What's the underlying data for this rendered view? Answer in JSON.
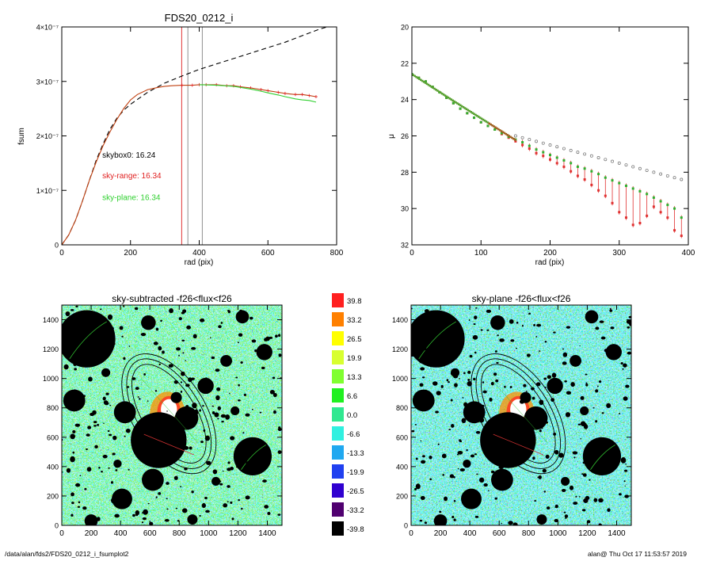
{
  "footer": {
    "path": "/data/alan/fds2/FDS20_0212_i_fsumplot2",
    "stamp": "alan@  Thu Oct 17 11:53:57 2019"
  },
  "chart_data": [
    {
      "type": "line",
      "title": "FDS20_0212_i",
      "xlabel": "rad (pix)",
      "ylabel": "fsum",
      "xlim": [
        0,
        800
      ],
      "ylim": [
        0,
        4e-07
      ],
      "xticks": [
        {
          "v": 0,
          "label": "0"
        },
        {
          "v": 200,
          "label": "200"
        },
        {
          "v": 400,
          "label": "400"
        },
        {
          "v": 600,
          "label": "600"
        },
        {
          "v": 800,
          "label": "800"
        }
      ],
      "yticks": [
        {
          "v": 0,
          "label": "0"
        },
        {
          "v": 1e-07,
          "label": "1×10⁻⁷"
        },
        {
          "v": 2e-07,
          "label": "2×10⁻⁷"
        },
        {
          "v": 3e-07,
          "label": "3×10⁻⁷"
        },
        {
          "v": 4e-07,
          "label": "4×10⁻⁷"
        }
      ],
      "vlines": [
        {
          "x": 349,
          "color": "#e03030"
        },
        {
          "x": 367,
          "color": "#909090"
        },
        {
          "x": 409,
          "color": "#909090"
        }
      ],
      "series": [
        {
          "style": "dashed",
          "color": "#000000",
          "x": [
            0,
            20,
            40,
            60,
            80,
            100,
            120,
            140,
            160,
            180,
            200,
            250,
            300,
            350,
            400,
            450,
            500,
            550,
            600,
            650,
            700,
            750,
            800
          ],
          "y": [
            0,
            1.8e-08,
            4.5e-08,
            8e-08,
            1.18e-07,
            1.55e-07,
            1.85e-07,
            2.12e-07,
            2.32e-07,
            2.47e-07,
            2.58e-07,
            2.8e-07,
            2.97e-07,
            3.1e-07,
            3.22e-07,
            3.32e-07,
            3.42e-07,
            3.52e-07,
            3.62e-07,
            3.72e-07,
            3.84e-07,
            3.96e-07,
            4.05e-07
          ]
        },
        {
          "style": "solid",
          "color": "#c04010",
          "x": [
            0,
            20,
            40,
            60,
            80,
            100,
            120,
            140,
            160,
            180,
            200,
            220,
            250,
            280,
            300,
            320,
            350,
            380,
            400,
            420,
            450,
            480,
            500,
            520,
            550,
            580,
            600,
            630,
            650,
            680,
            700,
            720,
            740
          ],
          "y": [
            0,
            1.8e-08,
            4.5e-08,
            8e-08,
            1.18e-07,
            1.52e-07,
            1.82e-07,
            2.07e-07,
            2.3e-07,
            2.5e-07,
            2.66e-07,
            2.76e-07,
            2.85e-07,
            2.89e-07,
            2.91e-07,
            2.92e-07,
            2.93e-07,
            2.93e-07,
            2.94e-07,
            2.94e-07,
            2.94e-07,
            2.92e-07,
            2.92e-07,
            2.9e-07,
            2.88e-07,
            2.85e-07,
            2.83e-07,
            2.8e-07,
            2.78e-07,
            2.76e-07,
            2.76e-07,
            2.74e-07,
            2.72e-07
          ]
        },
        {
          "style": "solid",
          "color": "#30d030",
          "x": [
            400,
            450,
            500,
            520,
            550,
            580,
            600,
            630,
            650,
            680,
            700,
            720,
            740
          ],
          "y": [
            2.94e-07,
            2.93e-07,
            2.91e-07,
            2.89e-07,
            2.86e-07,
            2.82e-07,
            2.79e-07,
            2.75e-07,
            2.72e-07,
            2.68e-07,
            2.66e-07,
            2.65e-07,
            2.62e-07
          ]
        }
      ],
      "annotations": [
        {
          "text": "skybox0: 16.24",
          "color": "#000000",
          "x": 210,
          "y": 1.6e-07
        },
        {
          "text": "sky-range: 16.34",
          "color": "#e02020",
          "x": 210,
          "y": 1.22e-07
        },
        {
          "text": "sky-plane: 16.34",
          "color": "#30d030",
          "x": 210,
          "y": 8.2e-08
        }
      ]
    },
    {
      "type": "scatter",
      "title": "",
      "xlabel": "rad (pix)",
      "ylabel": "μ",
      "xlim": [
        0,
        400
      ],
      "ylim": [
        32,
        20
      ],
      "xticks": [
        {
          "v": 0,
          "label": "0"
        },
        {
          "v": 100,
          "label": "100"
        },
        {
          "v": 200,
          "label": "200"
        },
        {
          "v": 300,
          "label": "300"
        },
        {
          "v": 400,
          "label": "400"
        }
      ],
      "yticks": [
        {
          "v": 20,
          "label": "20"
        },
        {
          "v": 22,
          "label": "22"
        },
        {
          "v": 24,
          "label": "24"
        },
        {
          "v": 26,
          "label": "26"
        },
        {
          "v": 28,
          "label": "28"
        },
        {
          "v": 30,
          "label": "30"
        },
        {
          "v": 32,
          "label": "32"
        }
      ],
      "series": [
        {
          "color": "#30b030",
          "x": [
            0,
            10,
            20,
            30,
            40,
            50,
            60,
            70,
            80,
            90,
            100,
            110,
            120,
            130,
            140,
            150,
            160,
            170,
            180,
            190,
            200,
            210,
            220,
            230,
            240,
            250,
            260,
            270,
            280,
            290,
            300,
            310,
            320,
            330,
            340,
            350,
            360,
            370,
            380,
            390
          ],
          "y": [
            22.6,
            22.8,
            23.0,
            23.3,
            23.6,
            23.9,
            24.2,
            24.5,
            24.75,
            25.0,
            25.25,
            25.45,
            25.65,
            25.85,
            26.05,
            26.2,
            26.35,
            26.55,
            26.75,
            26.9,
            27.05,
            27.2,
            27.35,
            27.5,
            27.7,
            27.8,
            27.95,
            28.1,
            28.3,
            28.45,
            28.6,
            28.75,
            28.9,
            29.05,
            29.2,
            29.4,
            29.6,
            29.8,
            30.0,
            30.5
          ]
        },
        {
          "color": "#e03030",
          "x": [
            0,
            10,
            20,
            30,
            40,
            50,
            60,
            70,
            80,
            90,
            100,
            110,
            120,
            130,
            140,
            150,
            160,
            170,
            180,
            190,
            200,
            210,
            220,
            230,
            240,
            250,
            260,
            270,
            280,
            290,
            300,
            310,
            320,
            330,
            340,
            350,
            360,
            370,
            380,
            390
          ],
          "y": [
            22.6,
            22.8,
            23.0,
            23.3,
            23.6,
            23.9,
            24.2,
            24.5,
            24.75,
            25.0,
            25.25,
            25.45,
            25.65,
            25.9,
            26.1,
            26.3,
            26.5,
            26.7,
            26.95,
            27.1,
            27.3,
            27.5,
            27.7,
            27.95,
            28.2,
            28.4,
            28.7,
            29.0,
            29.3,
            29.7,
            30.2,
            30.5,
            30.9,
            30.8,
            30.4,
            29.9,
            30.2,
            30.5,
            31.2,
            31.5
          ]
        },
        {
          "color": "#707070",
          "x": [
            150,
            160,
            170,
            180,
            190,
            200,
            210,
            220,
            230,
            240,
            250,
            260,
            270,
            280,
            290,
            300,
            310,
            320,
            330,
            340,
            350,
            360,
            370,
            380,
            390
          ],
          "y": [
            26.0,
            26.1,
            26.2,
            26.3,
            26.4,
            26.5,
            26.6,
            26.7,
            26.8,
            26.9,
            27.0,
            27.1,
            27.2,
            27.3,
            27.4,
            27.5,
            27.6,
            27.7,
            27.8,
            27.9,
            28.0,
            28.1,
            28.2,
            28.3,
            28.4
          ]
        }
      ]
    },
    {
      "type": "heatmap",
      "title": "sky-subtracted -f26<flux<f26",
      "xlim": [
        0,
        1500
      ],
      "ylim": [
        0,
        1500
      ],
      "xticks": [
        {
          "v": 0,
          "label": "0"
        },
        {
          "v": 200,
          "label": "200"
        },
        {
          "v": 400,
          "label": "400"
        },
        {
          "v": 600,
          "label": "600"
        },
        {
          "v": 800,
          "label": "800"
        },
        {
          "v": 1000,
          "label": "1000"
        },
        {
          "v": 1200,
          "label": "1200"
        },
        {
          "v": 1400,
          "label": "1400"
        }
      ],
      "yticks": [
        {
          "v": 0,
          "label": "0"
        },
        {
          "v": 200,
          "label": "200"
        },
        {
          "v": 400,
          "label": "400"
        },
        {
          "v": 600,
          "label": "600"
        },
        {
          "v": 800,
          "label": "800"
        },
        {
          "v": 1000,
          "label": "1000"
        },
        {
          "v": 1200,
          "label": "1200"
        },
        {
          "v": 1400,
          "label": "1400"
        }
      ]
    },
    {
      "type": "heatmap",
      "title": "sky-plane -f26<flux<f26",
      "xlim": [
        0,
        1500
      ],
      "ylim": [
        0,
        1500
      ],
      "xticks": [
        {
          "v": 0,
          "label": "0"
        },
        {
          "v": 200,
          "label": "200"
        },
        {
          "v": 400,
          "label": "400"
        },
        {
          "v": 600,
          "label": "600"
        },
        {
          "v": 800,
          "label": "800"
        },
        {
          "v": 1000,
          "label": "1000"
        },
        {
          "v": 1200,
          "label": "1200"
        },
        {
          "v": 1400,
          "label": "1400"
        }
      ],
      "yticks": [
        {
          "v": 0,
          "label": "0"
        },
        {
          "v": 200,
          "label": "200"
        },
        {
          "v": 400,
          "label": "400"
        },
        {
          "v": 600,
          "label": "600"
        },
        {
          "v": 800,
          "label": "800"
        },
        {
          "v": 1000,
          "label": "1000"
        },
        {
          "v": 1200,
          "label": "1200"
        },
        {
          "v": 1400,
          "label": "1400"
        }
      ]
    }
  ],
  "colorbar": [
    {
      "label": "39.8",
      "color": "#ff2020"
    },
    {
      "label": "33.2",
      "color": "#ff8000"
    },
    {
      "label": "26.5",
      "color": "#ffff00"
    },
    {
      "label": "19.9",
      "color": "#d8ff30"
    },
    {
      "label": "13.3",
      "color": "#80ff30"
    },
    {
      "label": "6.6",
      "color": "#20f020"
    },
    {
      "label": "0.0",
      "color": "#30e890"
    },
    {
      "label": "-6.6",
      "color": "#30f0e0"
    },
    {
      "label": "-13.3",
      "color": "#20a8f0"
    },
    {
      "label": "-19.9",
      "color": "#2040f0"
    },
    {
      "label": "-26.5",
      "color": "#3000d0"
    },
    {
      "label": "-33.2",
      "color": "#500070"
    },
    {
      "label": "-39.8",
      "color": "#000000"
    }
  ],
  "mask_blobs": [
    {
      "x": 170,
      "y": 1270,
      "r": 195,
      "stroke": "#30c030"
    },
    {
      "x": 85,
      "y": 850,
      "r": 75
    },
    {
      "x": 1300,
      "y": 470,
      "r": 130,
      "stroke": "#30c030"
    },
    {
      "x": 660,
      "y": 580,
      "r": 190
    },
    {
      "x": 430,
      "y": 770,
      "r": 75
    },
    {
      "x": 980,
      "y": 950,
      "r": 55
    },
    {
      "x": 1380,
      "y": 1180,
      "r": 55
    },
    {
      "x": 620,
      "y": 310,
      "r": 75
    },
    {
      "x": 410,
      "y": 180,
      "r": 70
    },
    {
      "x": 850,
      "y": 730,
      "r": 80
    },
    {
      "x": 590,
      "y": 1380,
      "r": 50
    },
    {
      "x": 1120,
      "y": 1120,
      "r": 40
    },
    {
      "x": 1230,
      "y": 1420,
      "r": 45
    },
    {
      "x": 780,
      "y": 870,
      "r": 38
    },
    {
      "x": 300,
      "y": 1040,
      "r": 30
    },
    {
      "x": 1180,
      "y": 780,
      "r": 30
    },
    {
      "x": 200,
      "y": 30,
      "r": 45
    },
    {
      "x": 890,
      "y": 40,
      "r": 35
    },
    {
      "x": 380,
      "y": 420,
      "r": 28
    },
    {
      "x": 1050,
      "y": 300,
      "r": 30
    }
  ]
}
